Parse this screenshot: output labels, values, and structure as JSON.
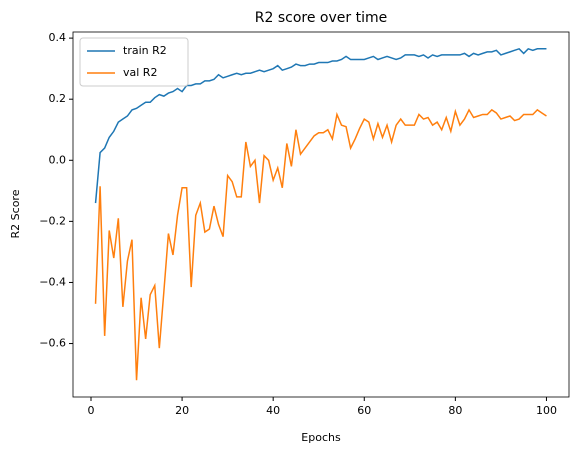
{
  "chart_data": {
    "type": "line",
    "title": "R2 score over time",
    "xlabel": "Epochs",
    "ylabel": "R2 Score",
    "x": [
      1,
      2,
      3,
      4,
      5,
      6,
      7,
      8,
      9,
      10,
      11,
      12,
      13,
      14,
      15,
      16,
      17,
      18,
      19,
      20,
      21,
      22,
      23,
      24,
      25,
      26,
      27,
      28,
      29,
      30,
      31,
      32,
      33,
      34,
      35,
      36,
      37,
      38,
      39,
      40,
      41,
      42,
      43,
      44,
      45,
      46,
      47,
      48,
      49,
      50,
      51,
      52,
      53,
      54,
      55,
      56,
      57,
      58,
      59,
      60,
      61,
      62,
      63,
      64,
      65,
      66,
      67,
      68,
      69,
      70,
      71,
      72,
      73,
      74,
      75,
      76,
      77,
      78,
      79,
      80,
      81,
      82,
      83,
      84,
      85,
      86,
      87,
      88,
      89,
      90,
      91,
      92,
      93,
      94,
      95,
      96,
      97,
      98,
      99,
      100
    ],
    "series": [
      {
        "name": "train R2",
        "color": "#1f77b4",
        "values": [
          -0.14,
          0.025,
          0.04,
          0.075,
          0.095,
          0.125,
          0.135,
          0.145,
          0.165,
          0.17,
          0.18,
          0.19,
          0.19,
          0.205,
          0.215,
          0.21,
          0.22,
          0.225,
          0.235,
          0.225,
          0.245,
          0.245,
          0.25,
          0.25,
          0.26,
          0.26,
          0.265,
          0.28,
          0.27,
          0.275,
          0.28,
          0.285,
          0.28,
          0.285,
          0.285,
          0.29,
          0.295,
          0.29,
          0.295,
          0.3,
          0.31,
          0.295,
          0.3,
          0.305,
          0.315,
          0.31,
          0.31,
          0.315,
          0.315,
          0.32,
          0.32,
          0.32,
          0.325,
          0.325,
          0.33,
          0.34,
          0.33,
          0.33,
          0.33,
          0.33,
          0.335,
          0.34,
          0.33,
          0.335,
          0.34,
          0.335,
          0.33,
          0.335,
          0.345,
          0.345,
          0.345,
          0.34,
          0.345,
          0.335,
          0.345,
          0.34,
          0.345,
          0.345,
          0.345,
          0.345,
          0.345,
          0.35,
          0.34,
          0.35,
          0.345,
          0.35,
          0.355,
          0.355,
          0.36,
          0.345,
          0.35,
          0.355,
          0.36,
          0.365,
          0.35,
          0.365,
          0.36,
          0.365,
          0.365,
          0.365
        ]
      },
      {
        "name": "val R2",
        "color": "#ff7f0e",
        "values": [
          -0.47,
          -0.085,
          -0.575,
          -0.23,
          -0.32,
          -0.19,
          -0.48,
          -0.33,
          -0.26,
          -0.72,
          -0.45,
          -0.585,
          -0.44,
          -0.41,
          -0.615,
          -0.43,
          -0.24,
          -0.31,
          -0.18,
          -0.09,
          -0.09,
          -0.415,
          -0.18,
          -0.14,
          -0.235,
          -0.225,
          -0.15,
          -0.21,
          -0.25,
          -0.05,
          -0.07,
          -0.12,
          -0.12,
          0.06,
          -0.02,
          0.0,
          -0.14,
          0.015,
          0.0,
          -0.065,
          -0.025,
          -0.09,
          0.055,
          -0.02,
          0.1,
          0.02,
          0.04,
          0.06,
          0.08,
          0.09,
          0.09,
          0.1,
          0.07,
          0.15,
          0.115,
          0.11,
          0.04,
          0.07,
          0.105,
          0.135,
          0.125,
          0.07,
          0.12,
          0.075,
          0.115,
          0.06,
          0.115,
          0.135,
          0.115,
          0.115,
          0.115,
          0.15,
          0.135,
          0.14,
          0.115,
          0.125,
          0.1,
          0.14,
          0.095,
          0.16,
          0.115,
          0.135,
          0.165,
          0.14,
          0.145,
          0.15,
          0.15,
          0.165,
          0.155,
          0.135,
          0.14,
          0.145,
          0.13,
          0.135,
          0.15,
          0.15,
          0.15,
          0.165,
          0.155,
          0.145
        ]
      }
    ],
    "xlim": [
      -3.95,
      104.95
    ],
    "ylim": [
      -0.775,
      0.42
    ],
    "xticks": [
      0,
      20,
      40,
      60,
      80,
      100
    ],
    "yticks": [
      {
        "value": -0.6,
        "label": "−0.6"
      },
      {
        "value": -0.4,
        "label": "−0.4"
      },
      {
        "value": -0.2,
        "label": "−0.2"
      },
      {
        "value": 0,
        "label": "0.0"
      },
      0.2,
      0.4
    ],
    "legend": "upper left"
  }
}
